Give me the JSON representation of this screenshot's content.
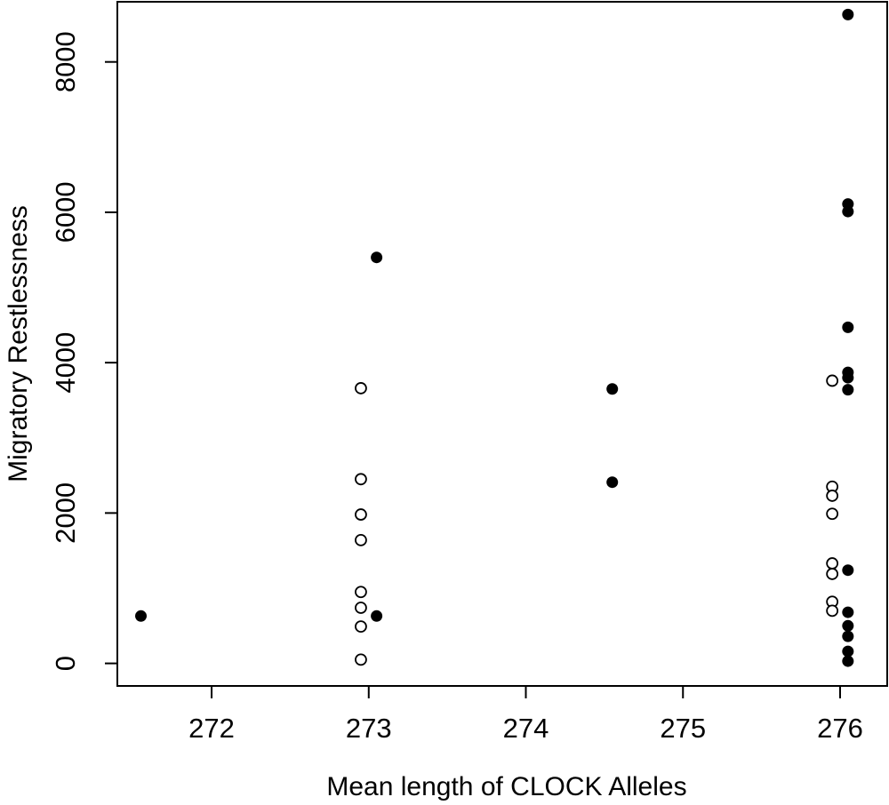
{
  "chart_data": {
    "type": "scatter",
    "title": "",
    "xlabel": "Mean length of CLOCK Alleles",
    "ylabel": "Migratory Restlessness",
    "xlim": [
      271.4,
      276.3
    ],
    "ylim": [
      -300,
      8800
    ],
    "x_ticks": [
      272,
      273,
      274,
      275,
      276
    ],
    "y_ticks": [
      0,
      2000,
      4000,
      6000,
      8000
    ],
    "grid": false,
    "series": [
      {
        "marker": "filled-circle",
        "color": "#000000",
        "points": [
          [
            271.55,
            630
          ],
          [
            273.05,
            5400
          ],
          [
            273.05,
            630
          ],
          [
            274.55,
            3650
          ],
          [
            274.55,
            2410
          ],
          [
            276.05,
            8630
          ],
          [
            276.05,
            6110
          ],
          [
            276.05,
            6010
          ],
          [
            276.05,
            4470
          ],
          [
            276.05,
            3870
          ],
          [
            276.05,
            3800
          ],
          [
            276.05,
            3640
          ],
          [
            276.05,
            1240
          ],
          [
            276.05,
            680
          ],
          [
            276.05,
            500
          ],
          [
            276.05,
            360
          ],
          [
            276.05,
            160
          ],
          [
            276.05,
            30
          ]
        ]
      },
      {
        "marker": "open-circle",
        "color": "#000000",
        "points": [
          [
            272.95,
            3660
          ],
          [
            272.95,
            2450
          ],
          [
            272.95,
            1980
          ],
          [
            272.95,
            1640
          ],
          [
            272.95,
            950
          ],
          [
            272.95,
            740
          ],
          [
            272.95,
            490
          ],
          [
            272.95,
            50
          ],
          [
            275.95,
            3760
          ],
          [
            275.95,
            2350
          ],
          [
            275.95,
            2230
          ],
          [
            275.95,
            1990
          ],
          [
            275.95,
            1330
          ],
          [
            275.95,
            1190
          ],
          [
            275.95,
            820
          ],
          [
            275.95,
            700
          ]
        ]
      }
    ]
  }
}
